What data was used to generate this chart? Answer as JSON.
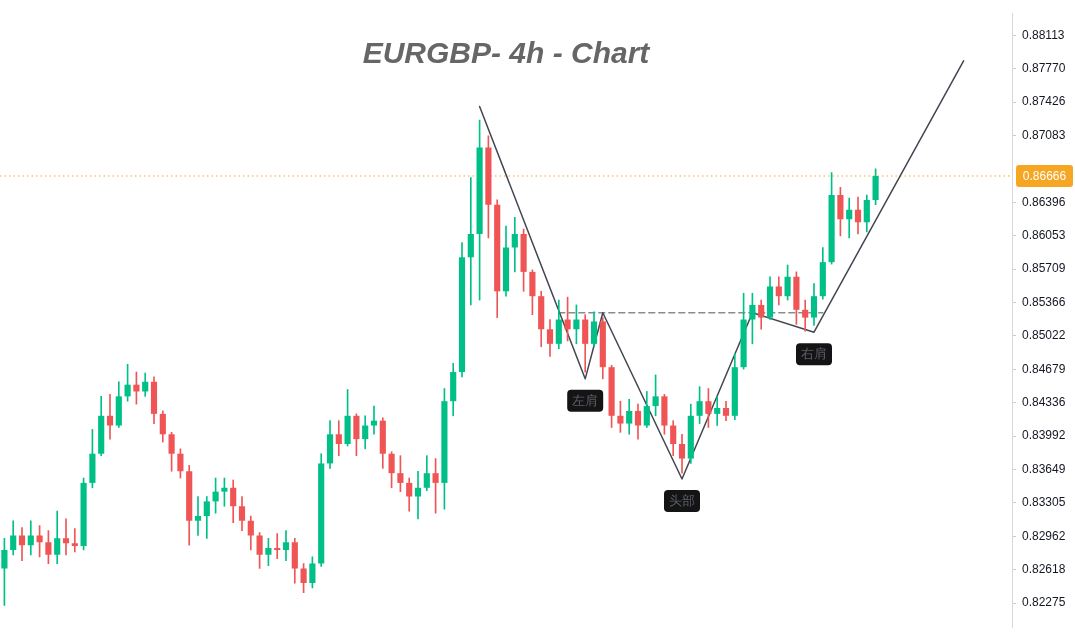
{
  "chart_data": {
    "type": "candlestick",
    "title": "EURGBP- 4h - Chart",
    "categories": [
      null,
      null,
      null,
      null,
      null,
      null,
      null,
      null,
      null,
      null,
      null,
      null,
      null,
      null,
      null,
      null,
      null,
      null,
      null,
      null,
      null,
      null,
      null,
      null,
      null,
      null,
      null,
      null,
      null,
      null,
      null,
      null,
      null,
      null,
      null,
      null,
      null,
      null,
      null,
      null,
      null,
      null,
      null,
      null,
      null,
      null,
      null,
      null,
      null,
      null,
      null,
      null,
      null,
      null,
      null,
      null,
      null,
      null,
      null,
      null,
      null,
      null,
      null,
      null,
      null,
      null,
      null,
      null,
      null,
      null,
      null,
      null,
      null,
      null,
      null,
      null,
      null,
      null,
      null,
      null,
      null,
      null,
      null,
      null,
      null,
      null,
      null,
      null,
      null,
      null,
      null,
      null,
      null,
      null,
      null,
      null,
      null,
      null,
      null,
      null,
      null,
      null,
      null,
      null,
      null,
      null,
      null,
      null,
      null,
      null,
      null,
      null,
      null,
      null,
      null
    ],
    "ohlc": [
      [
        0.8263,
        0.8294,
        0.8225,
        0.8282
      ],
      [
        0.8282,
        0.8312,
        0.8277,
        0.8297
      ],
      [
        0.8297,
        0.8305,
        0.8271,
        0.8287
      ],
      [
        0.8287,
        0.8312,
        0.8277,
        0.8297
      ],
      [
        0.8297,
        0.8307,
        0.8275,
        0.829
      ],
      [
        0.829,
        0.8302,
        0.8268,
        0.8277
      ],
      [
        0.8277,
        0.8322,
        0.8268,
        0.8294
      ],
      [
        0.8294,
        0.8314,
        0.8277,
        0.8289
      ],
      [
        0.8289,
        0.8304,
        0.828,
        0.8286
      ],
      [
        0.8286,
        0.8356,
        0.8282,
        0.8351
      ],
      [
        0.8351,
        0.8406,
        0.8346,
        0.8381
      ],
      [
        0.8381,
        0.844,
        0.8379,
        0.842
      ],
      [
        0.842,
        0.8442,
        0.8396,
        0.841
      ],
      [
        0.841,
        0.8455,
        0.8408,
        0.844
      ],
      [
        0.844,
        0.8473,
        0.8435,
        0.8452
      ],
      [
        0.8452,
        0.8465,
        0.8432,
        0.8445
      ],
      [
        0.8445,
        0.8464,
        0.844,
        0.8455
      ],
      [
        0.8455,
        0.846,
        0.8412,
        0.8422
      ],
      [
        0.8422,
        0.8425,
        0.8393,
        0.8401
      ],
      [
        0.8401,
        0.8403,
        0.8363,
        0.8381
      ],
      [
        0.8381,
        0.8386,
        0.8356,
        0.8363
      ],
      [
        0.8363,
        0.8369,
        0.8287,
        0.8312
      ],
      [
        0.8312,
        0.8337,
        0.8297,
        0.8317
      ],
      [
        0.8317,
        0.8337,
        0.8294,
        0.8332
      ],
      [
        0.8332,
        0.8356,
        0.832,
        0.8342
      ],
      [
        0.8342,
        0.8356,
        0.8327,
        0.8346
      ],
      [
        0.8346,
        0.8354,
        0.831,
        0.8327
      ],
      [
        0.8327,
        0.8337,
        0.8302,
        0.8312
      ],
      [
        0.8312,
        0.8317,
        0.8282,
        0.8297
      ],
      [
        0.8297,
        0.83,
        0.8263,
        0.8277
      ],
      [
        0.8277,
        0.8294,
        0.8266,
        0.8284
      ],
      [
        0.8284,
        0.8299,
        0.8273,
        0.8282
      ],
      [
        0.8282,
        0.8302,
        0.8271,
        0.829
      ],
      [
        0.829,
        0.8294,
        0.8248,
        0.8263
      ],
      [
        0.8263,
        0.8268,
        0.8238,
        0.8248
      ],
      [
        0.8248,
        0.8275,
        0.8243,
        0.8268
      ],
      [
        0.8268,
        0.8381,
        0.8265,
        0.8371
      ],
      [
        0.8371,
        0.8415,
        0.8366,
        0.8401
      ],
      [
        0.8401,
        0.8415,
        0.8379,
        0.8391
      ],
      [
        0.8391,
        0.8447,
        0.8389,
        0.842
      ],
      [
        0.842,
        0.8422,
        0.8379,
        0.8396
      ],
      [
        0.8396,
        0.842,
        0.8386,
        0.841
      ],
      [
        0.841,
        0.843,
        0.8401,
        0.8415
      ],
      [
        0.8415,
        0.8418,
        0.8366,
        0.8381
      ],
      [
        0.8381,
        0.8383,
        0.8346,
        0.8361
      ],
      [
        0.8361,
        0.8379,
        0.8342,
        0.8351
      ],
      [
        0.8351,
        0.8356,
        0.8322,
        0.8337
      ],
      [
        0.8337,
        0.8363,
        0.8314,
        0.8346
      ],
      [
        0.8346,
        0.8379,
        0.8343,
        0.8361
      ],
      [
        0.8361,
        0.8376,
        0.832,
        0.8351
      ],
      [
        0.8351,
        0.8448,
        0.8324,
        0.8435
      ],
      [
        0.8435,
        0.8474,
        0.842,
        0.8465
      ],
      [
        0.8465,
        0.8598,
        0.846,
        0.8583
      ],
      [
        0.8583,
        0.8665,
        0.8534,
        0.8607
      ],
      [
        0.8607,
        0.8724,
        0.8539,
        0.8696
      ],
      [
        0.8696,
        0.8708,
        0.8603,
        0.8637
      ],
      [
        0.8637,
        0.8642,
        0.8521,
        0.8548
      ],
      [
        0.8548,
        0.8615,
        0.8543,
        0.8593
      ],
      [
        0.8593,
        0.8624,
        0.8568,
        0.8607
      ],
      [
        0.8607,
        0.8612,
        0.8548,
        0.8568
      ],
      [
        0.8568,
        0.857,
        0.8524,
        0.8543
      ],
      [
        0.8543,
        0.8548,
        0.8491,
        0.8509
      ],
      [
        0.8509,
        0.8519,
        0.8481,
        0.8494
      ],
      [
        0.8494,
        0.8539,
        0.8489,
        0.8519
      ],
      [
        0.8519,
        0.8542,
        0.8497,
        0.8509
      ],
      [
        0.8509,
        0.8534,
        0.8494,
        0.8519
      ],
      [
        0.8519,
        0.8524,
        0.8465,
        0.8494
      ],
      [
        0.8494,
        0.8527,
        0.8491,
        0.8517
      ],
      [
        0.8517,
        0.8521,
        0.8458,
        0.847
      ],
      [
        0.847,
        0.8472,
        0.8408,
        0.842
      ],
      [
        0.842,
        0.8435,
        0.8403,
        0.8412
      ],
      [
        0.8412,
        0.8437,
        0.8401,
        0.8425
      ],
      [
        0.8425,
        0.8432,
        0.8396,
        0.841
      ],
      [
        0.841,
        0.8445,
        0.8408,
        0.843
      ],
      [
        0.843,
        0.8462,
        0.842,
        0.844
      ],
      [
        0.844,
        0.8442,
        0.8401,
        0.841
      ],
      [
        0.841,
        0.8415,
        0.8379,
        0.8391
      ],
      [
        0.8391,
        0.8401,
        0.8361,
        0.8376
      ],
      [
        0.8376,
        0.8432,
        0.8371,
        0.842
      ],
      [
        0.842,
        0.845,
        0.8412,
        0.8435
      ],
      [
        0.8435,
        0.8448,
        0.8408,
        0.8422
      ],
      [
        0.8422,
        0.844,
        0.841,
        0.8428
      ],
      [
        0.8428,
        0.8435,
        0.8415,
        0.842
      ],
      [
        0.842,
        0.8484,
        0.8416,
        0.847
      ],
      [
        0.847,
        0.8546,
        0.8468,
        0.8519
      ],
      [
        0.8519,
        0.8546,
        0.8494,
        0.8534
      ],
      [
        0.8534,
        0.8539,
        0.8509,
        0.8521
      ],
      [
        0.8521,
        0.8563,
        0.8519,
        0.8553
      ],
      [
        0.8553,
        0.8563,
        0.8534,
        0.8543
      ],
      [
        0.8543,
        0.8575,
        0.8539,
        0.8563
      ],
      [
        0.8563,
        0.8568,
        0.8514,
        0.8529
      ],
      [
        0.8529,
        0.8539,
        0.8507,
        0.8521
      ],
      [
        0.8521,
        0.8556,
        0.8513,
        0.8543
      ],
      [
        0.8543,
        0.8593,
        0.854,
        0.8578
      ],
      [
        0.8578,
        0.867,
        0.8576,
        0.8647
      ],
      [
        0.8647,
        0.8655,
        0.8605,
        0.8622
      ],
      [
        0.8622,
        0.8644,
        0.8603,
        0.8632
      ],
      [
        0.8632,
        0.8645,
        0.8607,
        0.8619
      ],
      [
        0.8619,
        0.8647,
        0.8609,
        0.8642
      ],
      [
        0.8642,
        0.8674,
        0.8637,
        0.86666
      ],
      null,
      null,
      null,
      null,
      null,
      null,
      null,
      null,
      null,
      null,
      null,
      null,
      null,
      null,
      null
    ],
    "colors": [
      "#00c087",
      "#00c087",
      "#f05555",
      "#00c087",
      "#f05555",
      "#f05555",
      "#00c087",
      "#f05555",
      "#f05555",
      "#00c087",
      "#00c087",
      "#00c087",
      "#f05555",
      "#00c087",
      "#00c087",
      "#f05555",
      "#00c087",
      "#f05555",
      "#f05555",
      "#f05555",
      "#f05555",
      "#f05555",
      "#00c087",
      "#00c087",
      "#00c087",
      "#00c087",
      "#f05555",
      "#f05555",
      "#f05555",
      "#f05555",
      "#00c087",
      "#f05555",
      "#00c087",
      "#f05555",
      "#f05555",
      "#00c087",
      "#00c087",
      "#00c087",
      "#f05555",
      "#00c087",
      "#f05555",
      "#00c087",
      "#00c087",
      "#f05555",
      "#f05555",
      "#f05555",
      "#f05555",
      "#00c087",
      "#00c087",
      "#f05555",
      "#00c087",
      "#00c087",
      "#00c087",
      "#00c087",
      "#00c087",
      "#f05555",
      "#f05555",
      "#00c087",
      "#00c087",
      "#f05555",
      "#f05555",
      "#f05555",
      "#f05555",
      "#00c087",
      "#f05555",
      "#00c087",
      "#f05555",
      "#00c087",
      "#f05555",
      "#f05555",
      "#f05555",
      "#00c087",
      "#f05555",
      "#00c087",
      "#00c087",
      "#f05555",
      "#f05555",
      "#f05555",
      "#00c087",
      "#00c087",
      "#f05555",
      "#00c087",
      "#f05555",
      "#00c087",
      "#00c087",
      "#00c087",
      "#f05555",
      "#00c087",
      "#f05555",
      "#00c087",
      "#f05555",
      "#f05555",
      "#00c087",
      "#00c087",
      "#00c087",
      "#f05555",
      "#00c087",
      "#f05555",
      "#00c087",
      "#00c087",
      null,
      null,
      null,
      null,
      null,
      null,
      null,
      null,
      null,
      null,
      null,
      null,
      null,
      null,
      null
    ],
    "series": [
      {
        "type": "line",
        "color": "#434651",
        "values": [
          null,
          null,
          null,
          null,
          null,
          null,
          null,
          null,
          null,
          null,
          null,
          null,
          null,
          null,
          null,
          null,
          null,
          null,
          null,
          null,
          null,
          null,
          null,
          null,
          null,
          null,
          null,
          null,
          null,
          null,
          null,
          null,
          null,
          null,
          null,
          null,
          null,
          null,
          null,
          null,
          null,
          null,
          null,
          null,
          null,
          null,
          null,
          null,
          null,
          null,
          null,
          null,
          null,
          null,
          0.8738,
          null,
          null,
          null,
          null,
          null,
          null,
          null,
          null,
          null,
          null,
          null,
          0.8458,
          null,
          0.8526,
          null,
          null,
          null,
          null,
          null,
          null,
          null,
          null,
          0.8355,
          null,
          null,
          null,
          null,
          null,
          null,
          null,
          0.8526,
          null,
          null,
          null,
          null,
          null,
          null,
          0.8506,
          null,
          null,
          null,
          null,
          null,
          null,
          null,
          null,
          null,
          null,
          null,
          null,
          null,
          null,
          null,
          null,
          0.8785,
          null,
          null,
          null,
          null,
          null
        ]
      },
      {
        "type": "line",
        "color": "#8a8c94",
        "line_style": "dashed",
        "values": [
          null,
          null,
          null,
          null,
          null,
          null,
          null,
          null,
          null,
          null,
          null,
          null,
          null,
          null,
          null,
          null,
          null,
          null,
          null,
          null,
          null,
          null,
          null,
          null,
          null,
          null,
          null,
          null,
          null,
          null,
          null,
          null,
          null,
          null,
          null,
          null,
          null,
          null,
          null,
          null,
          null,
          null,
          null,
          null,
          null,
          null,
          null,
          null,
          null,
          null,
          null,
          null,
          null,
          null,
          null,
          null,
          null,
          null,
          null,
          null,
          null,
          null,
          null,
          0.8526,
          null,
          null,
          null,
          null,
          null,
          null,
          null,
          null,
          null,
          null,
          null,
          null,
          null,
          null,
          null,
          null,
          null,
          null,
          null,
          null,
          null,
          null,
          null,
          null,
          null,
          null,
          null,
          null,
          null,
          0.8526,
          null,
          null,
          null,
          null,
          null,
          null,
          null,
          null,
          null,
          null,
          null,
          null,
          null,
          null,
          null,
          null,
          null,
          null,
          null,
          null,
          null
        ]
      }
    ],
    "ylim": [
      0.8202,
      0.8834
    ],
    "yticks": [
      0.82275,
      0.82618,
      0.82962,
      0.83305,
      0.83649,
      0.83992,
      0.84336,
      0.84679,
      0.85022,
      0.85366,
      0.85709,
      0.86053,
      0.86396,
      0.87083,
      0.87426,
      {
        "value": 0.8777,
        "label": "0.87770"
      },
      0.88113
    ],
    "tick_labels": "y",
    "grid": false,
    "legend": false,
    "ref_lines": [
      {
        "axis": "y",
        "value": 0.86666,
        "label": "0.86666",
        "color": "#f5a623",
        "line_style": "dotted"
      }
    ],
    "annotations": [
      {
        "text": "左肩",
        "y": 0.8458
      },
      {
        "text": "头部",
        "y": 0.8355
      },
      {
        "text": "右肩",
        "y": 0.8506
      }
    ]
  }
}
